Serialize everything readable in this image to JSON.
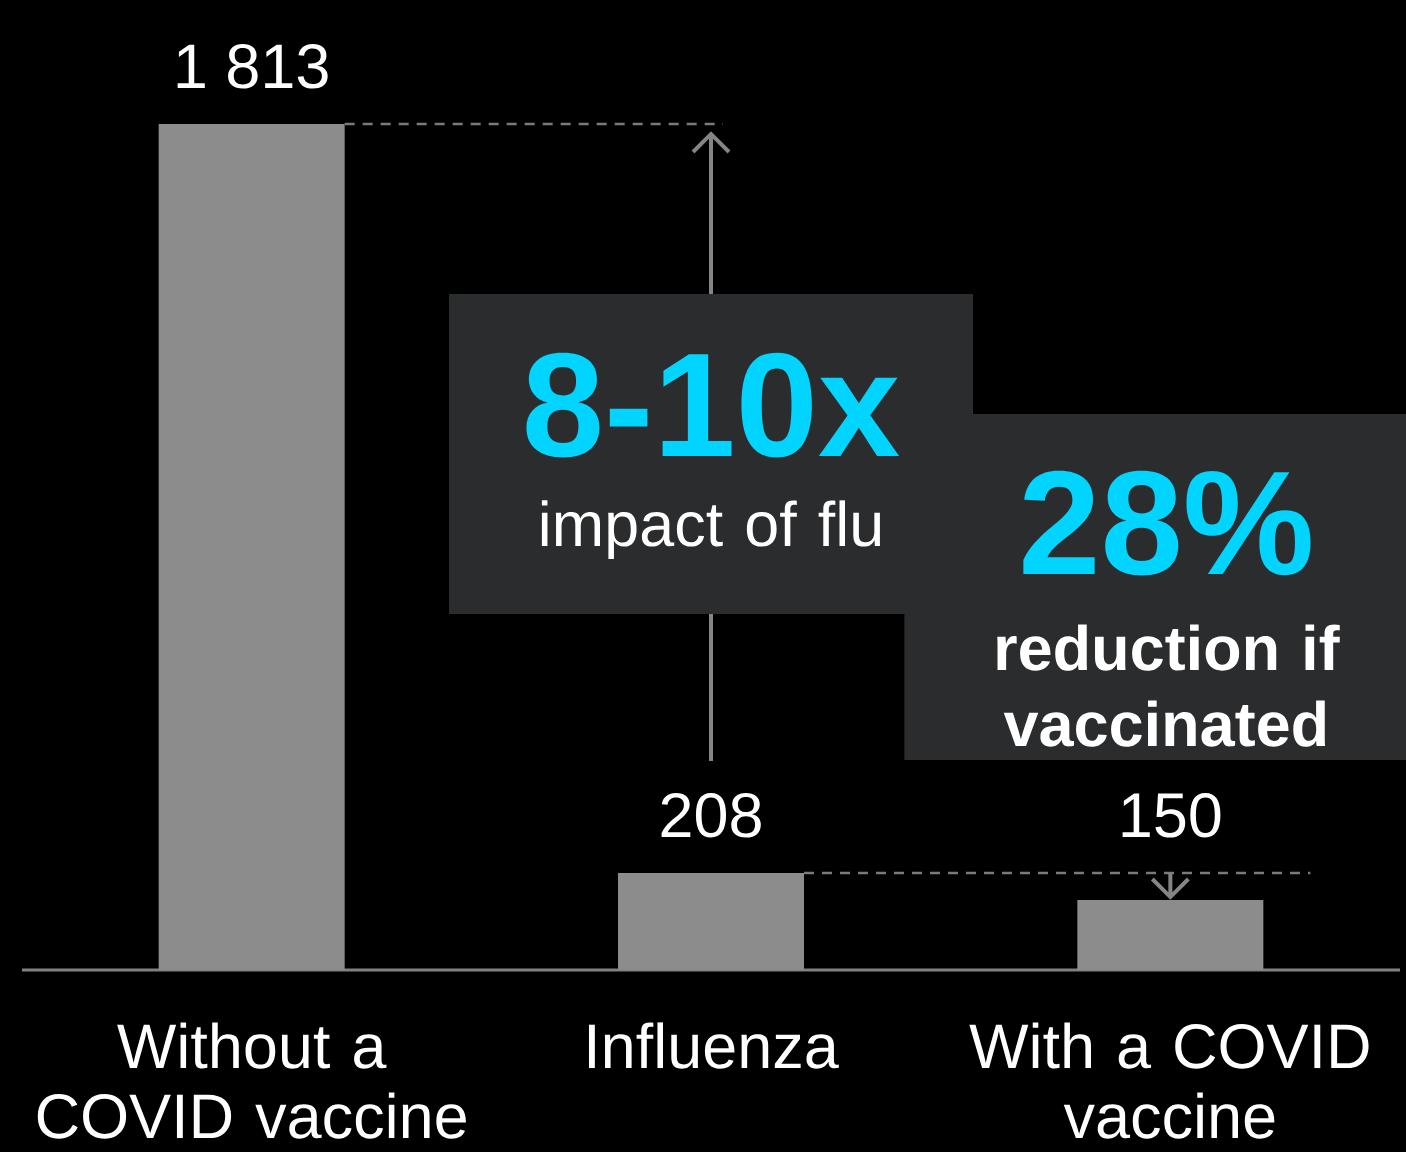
{
  "chart_data": {
    "type": "bar",
    "categories": [
      "Without a COVID vaccine",
      "Influenza",
      "With a COVID vaccine"
    ],
    "values": [
      1813,
      208,
      150
    ],
    "value_labels": [
      "1 813",
      "208",
      "150"
    ],
    "color": "#8c8c8c",
    "annotations": [
      "8-10x",
      "impact of flu",
      "28%",
      "reduction if vaccinated"
    ]
  }
}
